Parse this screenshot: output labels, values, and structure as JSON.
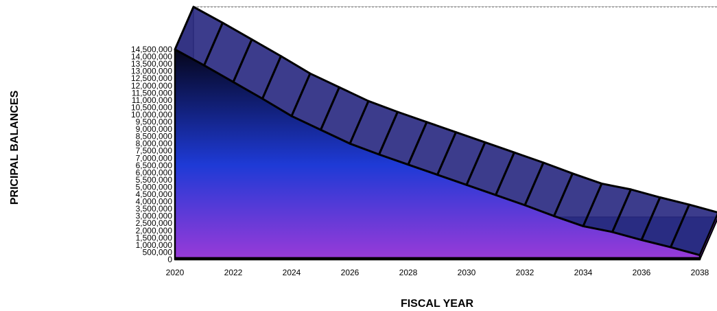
{
  "chart_data": {
    "type": "area",
    "title": "",
    "xlabel": "FISCAL YEAR",
    "ylabel": "PRICIPAL BALANCES",
    "x": [
      2020,
      2021,
      2022,
      2023,
      2024,
      2025,
      2026,
      2027,
      2028,
      2029,
      2030,
      2031,
      2032,
      2033,
      2034,
      2035,
      2036,
      2037,
      2038
    ],
    "values": [
      14500000,
      13400000,
      12250000,
      11100000,
      9900000,
      8950000,
      8000000,
      7250000,
      6550000,
      5850000,
      5150000,
      4450000,
      3750000,
      3000000,
      2300000,
      1900000,
      1350000,
      850000,
      300000
    ],
    "ylim": [
      0,
      14500000
    ],
    "y_tick_step": 500000,
    "y_ticks": [
      "0",
      "500,000",
      "1,000,000",
      "1,500,000",
      "2,000,000",
      "2,500,000",
      "3,000,000",
      "3,500,000",
      "4,000,000",
      "4,500,000",
      "5,000,000",
      "5,500,000",
      "6,000,000",
      "6,500,000",
      "7,000,000",
      "7,500,000",
      "8,000,000",
      "8,500,000",
      "9,000,000",
      "9,500,000",
      "10,000,000",
      "10,500,000",
      "11,000,000",
      "11,500,000",
      "12,000,000",
      "12,500,000",
      "13,000,000",
      "13,500,000",
      "14,000,000",
      "14,500,000"
    ],
    "x_ticks": [
      "2020",
      "2022",
      "2024",
      "2026",
      "2028",
      "2030",
      "2032",
      "2034",
      "2036",
      "2038"
    ],
    "grid": true,
    "legend": "none",
    "style": "3d",
    "colors": {
      "gradient_top": "#05051a",
      "gradient_mid": "#1e3ad6",
      "gradient_bottom": "#9a3ad8",
      "floor": "#7f96b8",
      "ribbon": "#1a1a78",
      "outline": "#000000"
    }
  }
}
